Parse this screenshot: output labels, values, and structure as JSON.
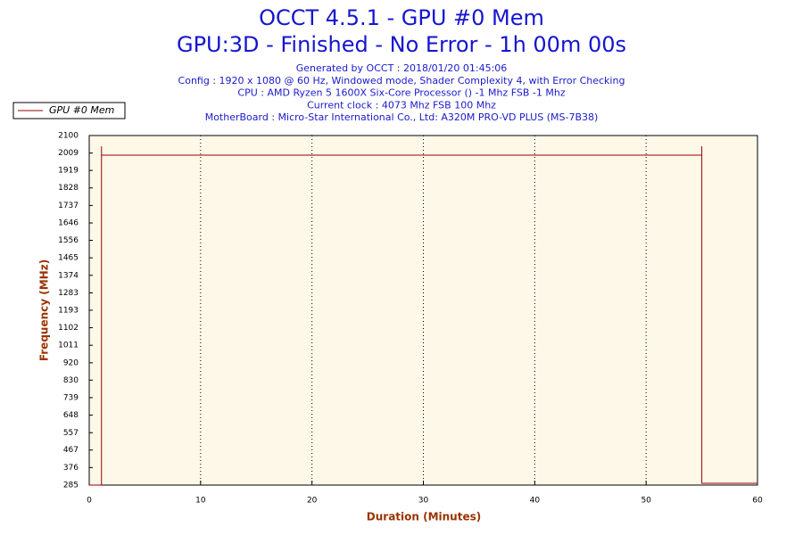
{
  "chart_data": {
    "type": "line",
    "title": "OCCT 4.5.1 - GPU #0 Mem",
    "subtitle": "GPU:3D - Finished - No Error - 1h 00m 00s",
    "notes": [
      "Generated by OCCT : 2018/01/20 01:45:06",
      "Config : 1920 x 1080 @ 60 Hz, Windowed mode, Shader Complexity 4, with Error Checking",
      "CPU : AMD Ryzen 5 1600X Six-Core Processor () -1 Mhz FSB -1 Mhz",
      "Current clock : 4073 Mhz FSB 100 Mhz",
      "MotherBoard : Micro-Star International Co., Ltd: A320M PRO-VD PLUS (MS-7B38)"
    ],
    "x_label": "Duration (Minutes)",
    "y_label": "Frequency (MHz)",
    "x": [
      0,
      1.1,
      1.1,
      1.1,
      55,
      55,
      55,
      60
    ],
    "series": [
      {
        "name": "GPU #0 Mem",
        "color": "#990000",
        "values": [
          285,
          285,
          2044,
          1998,
          1998,
          2044,
          294,
          294
        ]
      }
    ],
    "xlim": [
      0,
      60
    ],
    "xticks": [
      0,
      10,
      20,
      30,
      40,
      50,
      60
    ],
    "ylim": [
      285,
      2100
    ],
    "yticks": [
      285,
      376,
      467,
      557,
      648,
      739,
      830,
      920,
      1011,
      1102,
      1193,
      1283,
      1374,
      1465,
      1556,
      1646,
      1737,
      1828,
      1919,
      2009,
      2100
    ],
    "grid": true
  }
}
